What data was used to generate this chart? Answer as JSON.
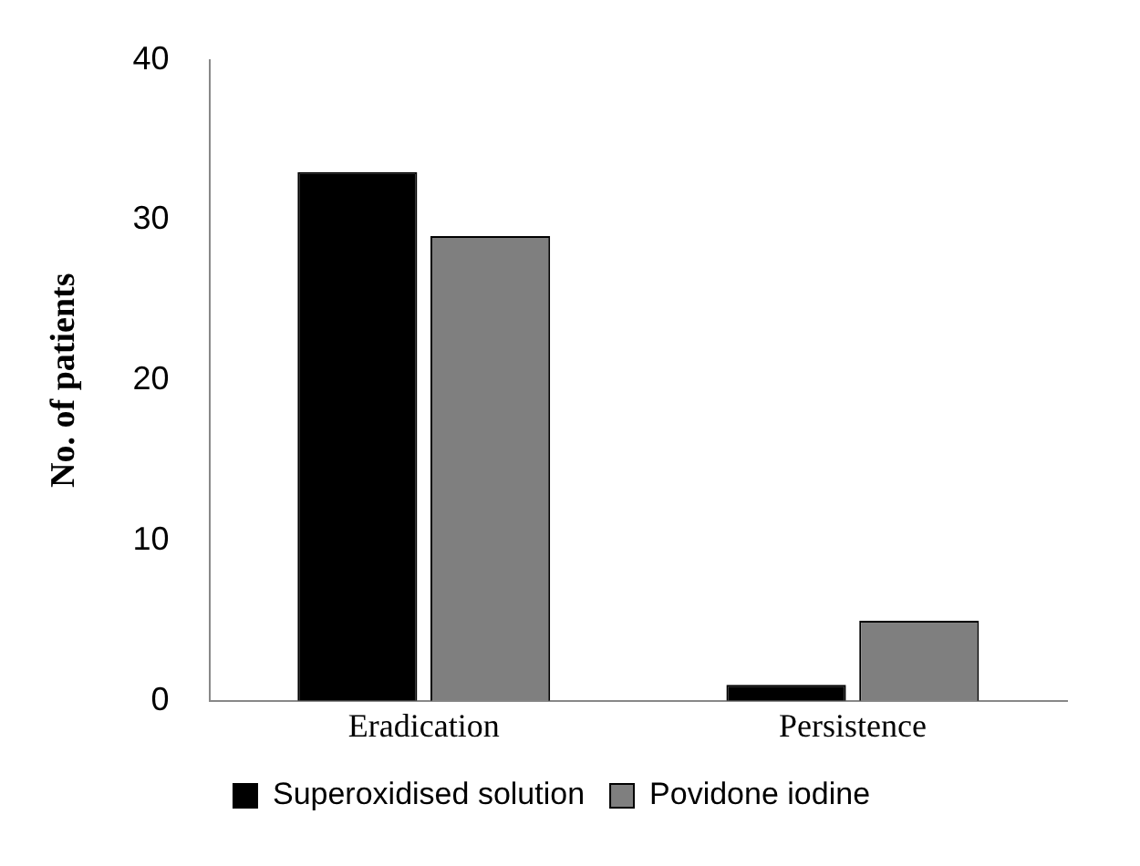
{
  "chart_data": {
    "type": "bar",
    "ylabel": "No. of patients",
    "categories": [
      "Eradication",
      "Persistence"
    ],
    "series": [
      {
        "name": "Superoxidised solution",
        "color": "#000000",
        "values": [
          33,
          1
        ]
      },
      {
        "name": "Povidone iodine",
        "color": "#7f7f7f",
        "values": [
          29,
          5
        ]
      }
    ],
    "ylim": [
      0,
      40
    ],
    "yticks": [
      0,
      10,
      20,
      30,
      40
    ],
    "grid": false,
    "legend": "bottom"
  }
}
